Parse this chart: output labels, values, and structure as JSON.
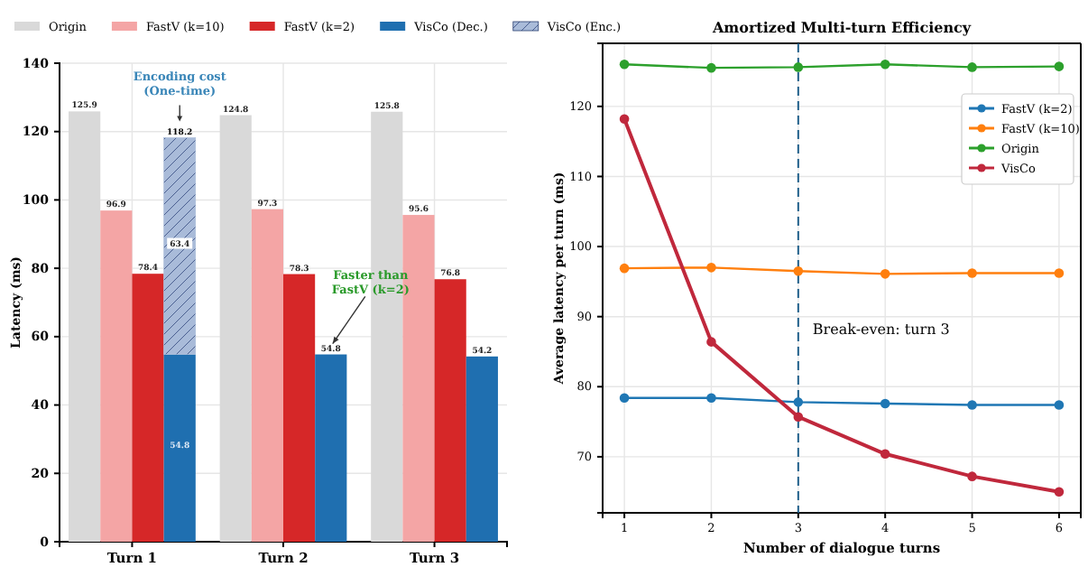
{
  "chart_data": [
    {
      "type": "bar",
      "ylabel": "Latency (ms)",
      "categories": [
        "Turn 1",
        "Turn 2",
        "Turn 3"
      ],
      "ylim": [
        0,
        140
      ],
      "yticks": [
        0,
        20,
        40,
        60,
        80,
        100,
        120,
        140
      ],
      "grid": true,
      "legend": "top",
      "series": [
        {
          "name": "Origin",
          "color": "#d9d9d9",
          "values": [
            125.9,
            124.8,
            125.8
          ],
          "value_labels": [
            "125.9",
            "124.8",
            "125.8"
          ]
        },
        {
          "name": "FastV (k=10)",
          "color": "#f4a5a5",
          "values": [
            96.9,
            97.3,
            95.6
          ],
          "value_labels": [
            "96.9",
            "97.3",
            "95.6"
          ]
        },
        {
          "name": "FastV (k=2)",
          "color": "#d62728",
          "values": [
            78.4,
            78.3,
            76.8
          ],
          "value_labels": [
            "78.4",
            "78.3",
            "76.8"
          ]
        },
        {
          "name": "VisCo (Dec.)",
          "color": "#1f6fb0",
          "values": [
            54.8,
            54.8,
            54.2
          ],
          "value_labels": [
            "54.8",
            "54.8",
            "54.2"
          ]
        },
        {
          "name": "VisCo (Enc.)",
          "color": "#a9bbd9",
          "values": [
            63.4,
            null,
            null
          ],
          "base": [
            54.8,
            null,
            null
          ],
          "value_labels": [
            "63.4",
            null,
            null
          ]
        }
      ],
      "annotations": [
        "118.2",
        "Encoding cost (One-time)",
        "Faster than FastV (k=2)"
      ]
    },
    {
      "type": "line",
      "title": "Amortized Multi-turn Efficiency",
      "xlabel": "Number of dialogue turns",
      "ylabel": "Average latency per turn (ms)",
      "x": [
        1,
        2,
        3,
        4,
        5,
        6
      ],
      "xlim": [
        0.75,
        6.25
      ],
      "xticks": [
        1,
        2,
        3,
        4,
        5,
        6
      ],
      "ylim": [
        62,
        129
      ],
      "yticks": [
        70,
        80,
        90,
        100,
        110,
        120
      ],
      "grid": true,
      "legend": "top right",
      "marker": "circle",
      "line_style": "solid",
      "series": [
        {
          "name": "FastV (k=2)",
          "color": "#1f77b4",
          "values": [
            78.4,
            78.4,
            77.8,
            77.6,
            77.4,
            77.4
          ]
        },
        {
          "name": "FastV (k=10)",
          "color": "#ff7f0e",
          "values": [
            96.9,
            97.0,
            96.5,
            96.1,
            96.2,
            96.2
          ]
        },
        {
          "name": "Origin",
          "color": "#2ca02c",
          "values": [
            126.0,
            125.5,
            125.6,
            126.0,
            125.6,
            125.7
          ]
        },
        {
          "name": "VisCo",
          "color": "#c0283c",
          "values": [
            118.2,
            86.4,
            75.7,
            70.4,
            67.2,
            65.0
          ]
        }
      ],
      "ref_lines": [
        {
          "axis": "x",
          "value": 3,
          "color": "#1f5f8a",
          "line_style": "dashed"
        }
      ],
      "annotations": [
        "Break-even: turn 3"
      ]
    }
  ]
}
